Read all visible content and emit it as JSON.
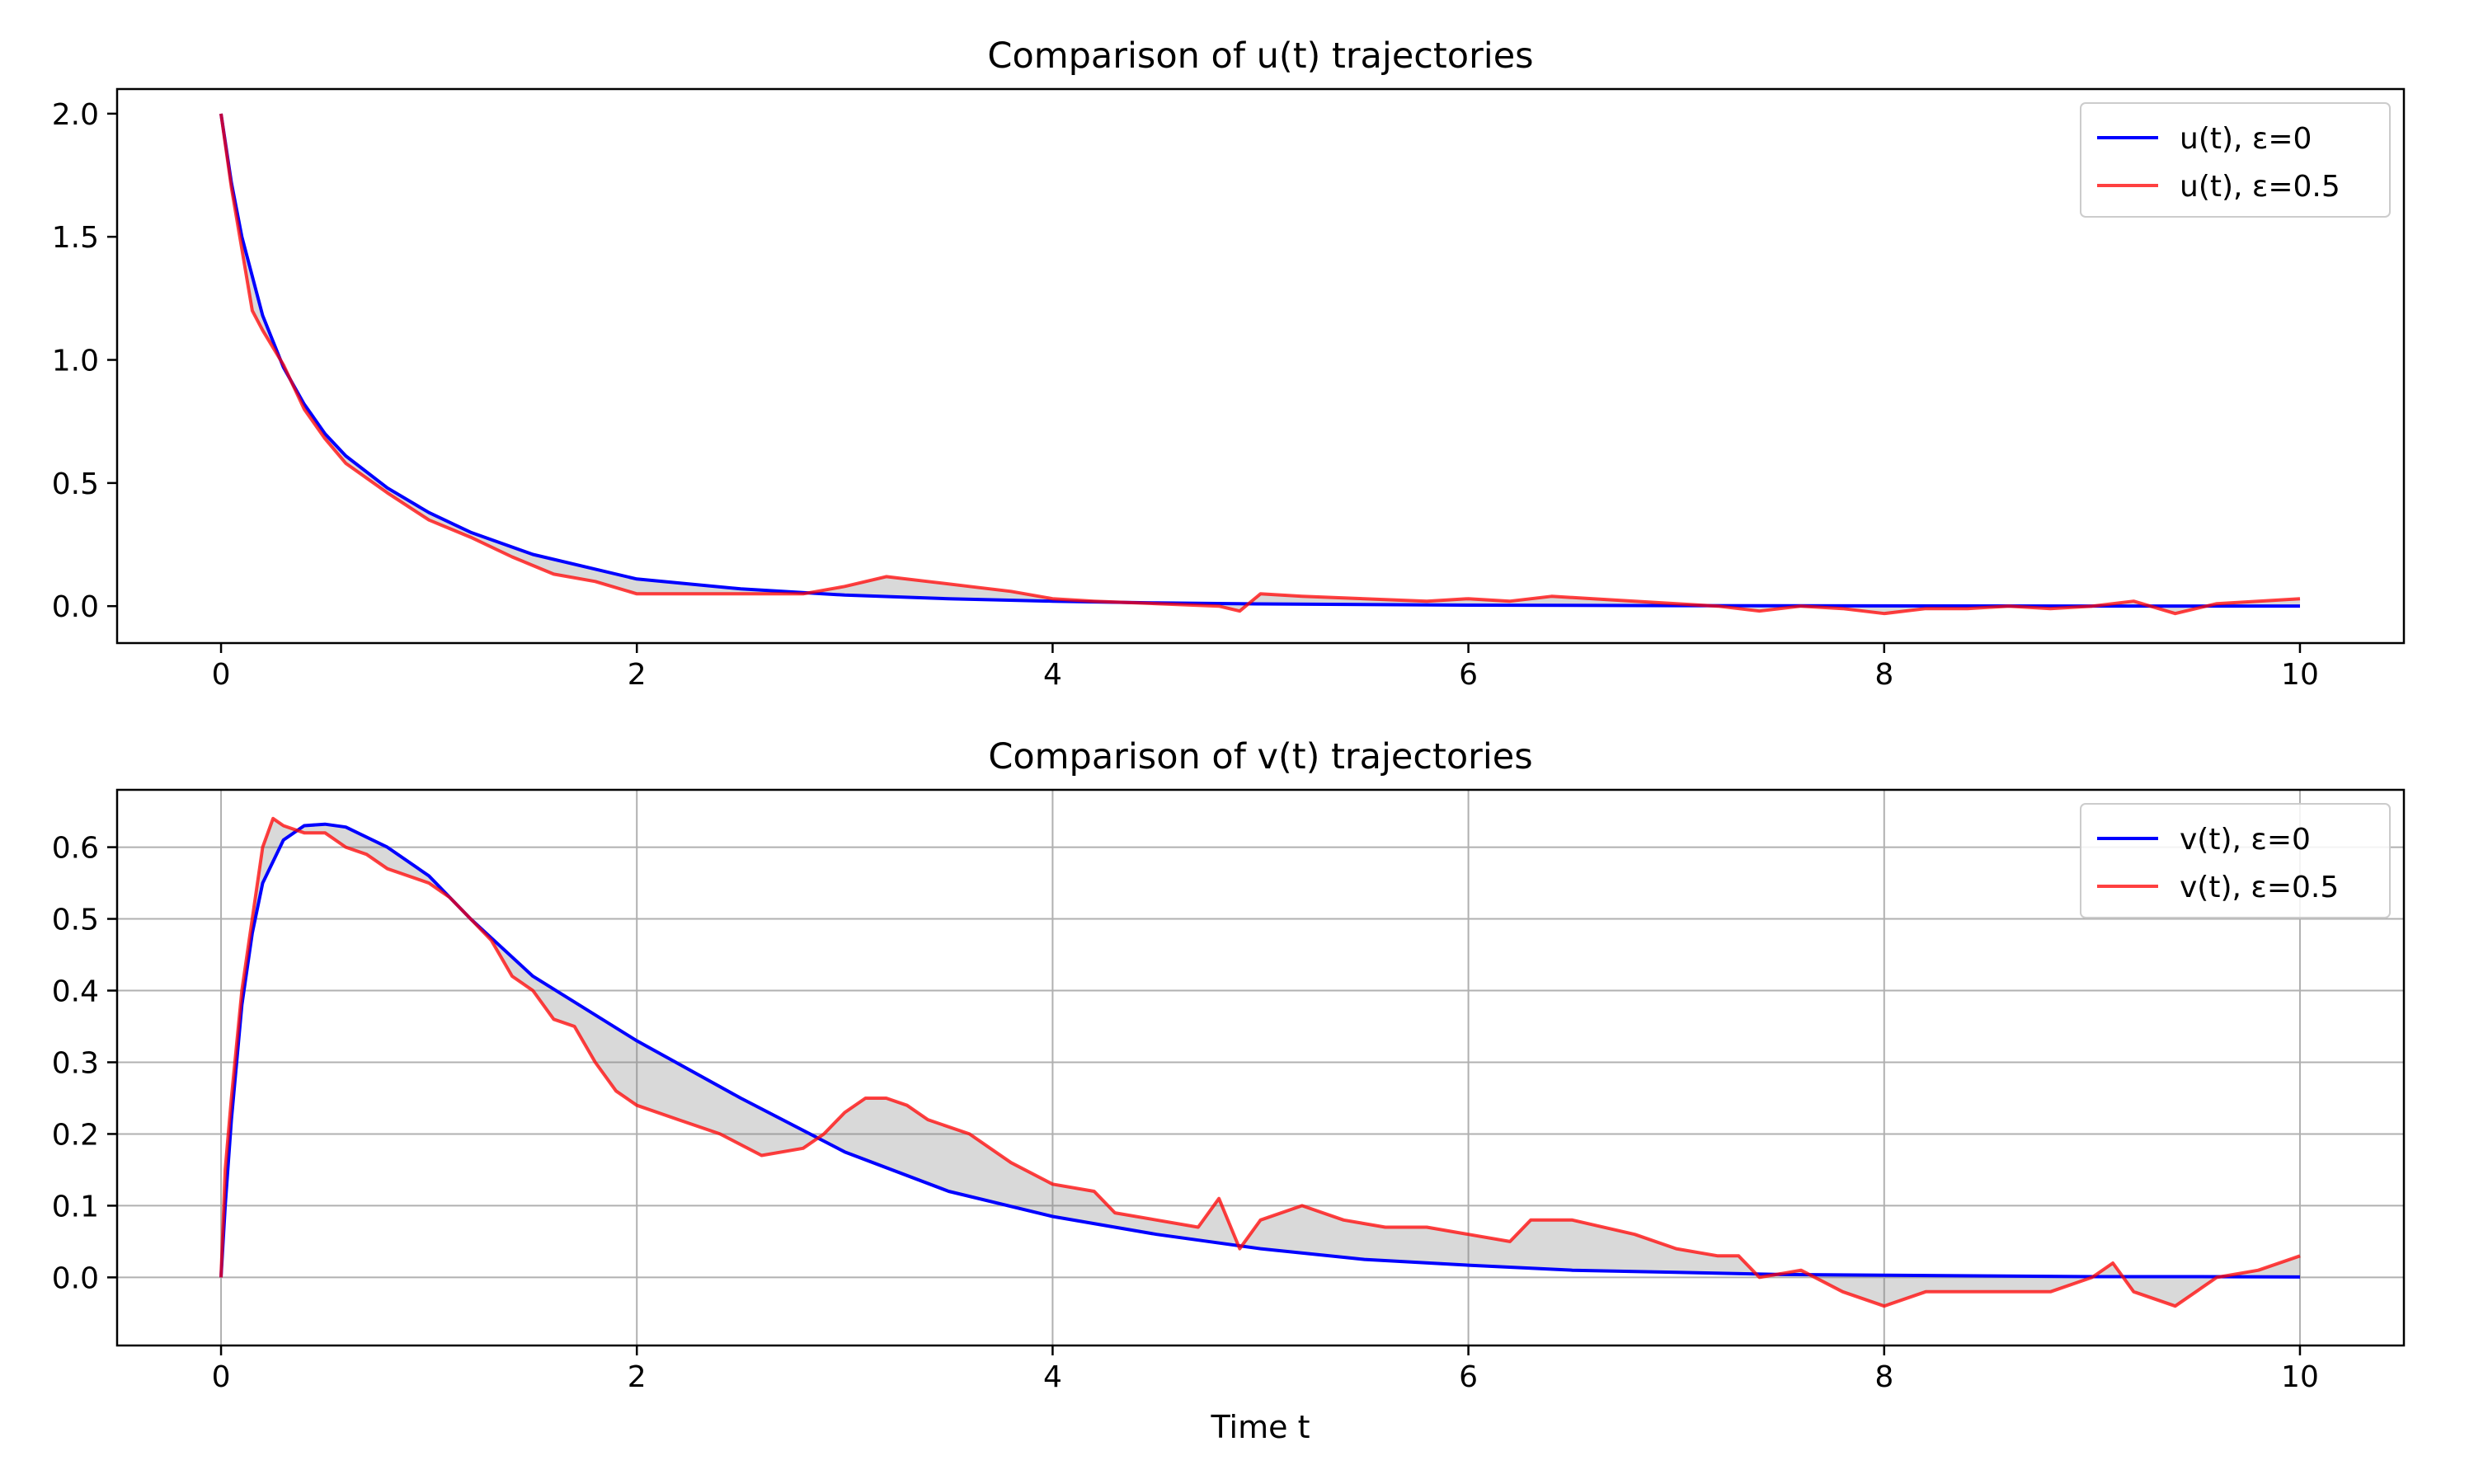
{
  "chart_data": [
    {
      "type": "line",
      "title": "Comparison of u(t) trajectories",
      "xlabel": "",
      "ylabel": "",
      "xlim": [
        -0.5,
        10.5
      ],
      "ylim": [
        -0.15,
        2.1
      ],
      "xticks": [
        0,
        2,
        4,
        6,
        8,
        10
      ],
      "xtick_labels": [
        "0",
        "2",
        "4",
        "6",
        "8",
        "10"
      ],
      "yticks": [
        0.0,
        0.5,
        1.0,
        1.5,
        2.0
      ],
      "ytick_labels": [
        "0.0",
        "0.5",
        "1.0",
        "1.5",
        "2.0"
      ],
      "grid": false,
      "legend_position": "top-right",
      "fill_between": true,
      "series": [
        {
          "name": "u(t), ε=0",
          "color": "#0000ff",
          "x": [
            0,
            0.05,
            0.1,
            0.2,
            0.3,
            0.4,
            0.5,
            0.6,
            0.8,
            1.0,
            1.2,
            1.5,
            2.0,
            2.5,
            3.0,
            3.5,
            4.0,
            4.5,
            5.0,
            6.0,
            7.0,
            8.0,
            9.0,
            10.0
          ],
          "y": [
            2.0,
            1.72,
            1.5,
            1.18,
            0.97,
            0.82,
            0.7,
            0.61,
            0.48,
            0.38,
            0.3,
            0.21,
            0.11,
            0.07,
            0.045,
            0.03,
            0.02,
            0.013,
            0.009,
            0.004,
            0.002,
            0.001,
            0.0005,
            0.0002
          ]
        },
        {
          "name": "u(t), ε=0.5",
          "color": "#ff0000",
          "x": [
            0,
            0.05,
            0.1,
            0.15,
            0.2,
            0.3,
            0.4,
            0.5,
            0.6,
            0.8,
            1.0,
            1.2,
            1.4,
            1.6,
            1.8,
            2.0,
            2.2,
            2.5,
            2.8,
            3.0,
            3.2,
            3.4,
            3.6,
            3.8,
            4.0,
            4.2,
            4.5,
            4.8,
            4.9,
            5.0,
            5.2,
            5.5,
            5.8,
            6.0,
            6.2,
            6.4,
            6.6,
            6.8,
            7.0,
            7.2,
            7.4,
            7.6,
            7.8,
            8.0,
            8.2,
            8.4,
            8.6,
            8.8,
            9.0,
            9.2,
            9.4,
            9.6,
            9.8,
            10.0
          ],
          "y": [
            2.0,
            1.7,
            1.45,
            1.2,
            1.12,
            0.98,
            0.8,
            0.68,
            0.58,
            0.46,
            0.35,
            0.28,
            0.2,
            0.13,
            0.1,
            0.05,
            0.05,
            0.05,
            0.05,
            0.08,
            0.12,
            0.1,
            0.08,
            0.06,
            0.03,
            0.02,
            0.01,
            0.0,
            -0.02,
            0.05,
            0.04,
            0.03,
            0.02,
            0.03,
            0.02,
            0.04,
            0.03,
            0.02,
            0.01,
            0.0,
            -0.02,
            0.0,
            -0.01,
            -0.03,
            -0.01,
            -0.01,
            0.0,
            -0.01,
            0.0,
            0.02,
            -0.03,
            0.01,
            0.02,
            0.03
          ]
        }
      ]
    },
    {
      "type": "line",
      "title": "Comparison of v(t) trajectories",
      "xlabel": "Time t",
      "ylabel": "",
      "xlim": [
        -0.5,
        10.5
      ],
      "ylim": [
        -0.095,
        0.68
      ],
      "xticks": [
        0,
        2,
        4,
        6,
        8,
        10
      ],
      "xtick_labels": [
        "0",
        "2",
        "4",
        "6",
        "8",
        "10"
      ],
      "yticks": [
        0.0,
        0.1,
        0.2,
        0.3,
        0.4,
        0.5,
        0.6
      ],
      "ytick_labels": [
        "0.0",
        "0.1",
        "0.2",
        "0.3",
        "0.4",
        "0.5",
        "0.6"
      ],
      "grid": true,
      "legend_position": "top-right",
      "fill_between": true,
      "series": [
        {
          "name": "v(t), ε=0",
          "color": "#0000ff",
          "x": [
            0,
            0.02,
            0.05,
            0.1,
            0.15,
            0.2,
            0.3,
            0.4,
            0.5,
            0.6,
            0.8,
            1.0,
            1.2,
            1.5,
            2.0,
            2.5,
            3.0,
            3.5,
            4.0,
            4.5,
            5.0,
            5.5,
            6.0,
            6.5,
            7.0,
            7.5,
            8.0,
            8.5,
            9.0,
            9.5,
            10.0
          ],
          "y": [
            0.0,
            0.1,
            0.22,
            0.38,
            0.48,
            0.55,
            0.61,
            0.63,
            0.632,
            0.628,
            0.6,
            0.56,
            0.5,
            0.42,
            0.33,
            0.25,
            0.175,
            0.12,
            0.085,
            0.06,
            0.04,
            0.025,
            0.017,
            0.01,
            0.007,
            0.004,
            0.003,
            0.002,
            0.001,
            0.001,
            0.0005
          ]
        },
        {
          "name": "v(t), ε=0.5",
          "color": "#ff0000",
          "x": [
            0,
            0.02,
            0.05,
            0.1,
            0.15,
            0.2,
            0.25,
            0.3,
            0.4,
            0.5,
            0.6,
            0.7,
            0.8,
            0.9,
            1.0,
            1.1,
            1.2,
            1.3,
            1.4,
            1.5,
            1.6,
            1.7,
            1.8,
            1.9,
            2.0,
            2.2,
            2.4,
            2.6,
            2.8,
            2.9,
            3.0,
            3.1,
            3.2,
            3.3,
            3.4,
            3.6,
            3.8,
            4.0,
            4.2,
            4.3,
            4.5,
            4.7,
            4.8,
            4.9,
            5.0,
            5.2,
            5.4,
            5.6,
            5.8,
            6.0,
            6.2,
            6.3,
            6.5,
            6.8,
            7.0,
            7.2,
            7.3,
            7.4,
            7.6,
            7.8,
            8.0,
            8.2,
            8.4,
            8.6,
            8.8,
            9.0,
            9.1,
            9.2,
            9.4,
            9.6,
            9.8,
            10.0
          ],
          "y": [
            0.0,
            0.15,
            0.25,
            0.4,
            0.5,
            0.6,
            0.64,
            0.63,
            0.62,
            0.62,
            0.6,
            0.59,
            0.57,
            0.56,
            0.55,
            0.53,
            0.5,
            0.47,
            0.42,
            0.4,
            0.36,
            0.35,
            0.3,
            0.26,
            0.24,
            0.22,
            0.2,
            0.17,
            0.18,
            0.2,
            0.23,
            0.25,
            0.25,
            0.24,
            0.22,
            0.2,
            0.16,
            0.13,
            0.12,
            0.09,
            0.08,
            0.07,
            0.11,
            0.04,
            0.08,
            0.1,
            0.08,
            0.07,
            0.07,
            0.06,
            0.05,
            0.08,
            0.08,
            0.06,
            0.04,
            0.03,
            0.03,
            0.0,
            0.01,
            -0.02,
            -0.04,
            -0.02,
            -0.02,
            -0.02,
            -0.02,
            0.0,
            0.02,
            -0.02,
            -0.04,
            0.0,
            0.01,
            0.03
          ]
        }
      ]
    }
  ]
}
